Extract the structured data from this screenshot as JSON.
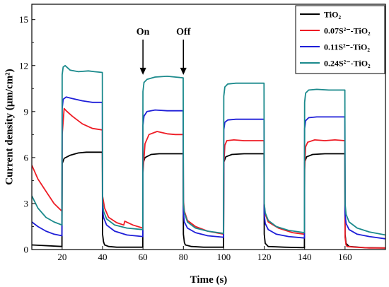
{
  "chart_data": {
    "type": "line",
    "xlabel": "Time (s)",
    "ylabel": "Current density (μm/cm²)",
    "xlim": [
      5,
      180
    ],
    "ylim": [
      0,
      16
    ],
    "xticks": [
      20,
      40,
      60,
      80,
      100,
      120,
      140,
      160
    ],
    "yticks": [
      0,
      3,
      6,
      9,
      12,
      15
    ],
    "grid": false,
    "legend_position": "top-right",
    "annotations": [
      {
        "text": "On",
        "x": 60,
        "y_arrow_tip": 11.3
      },
      {
        "text": "Off",
        "x": 80,
        "y_arrow_tip": 11.3
      }
    ],
    "series": [
      {
        "name": "TiO₂",
        "color": "#000000",
        "x": [
          5,
          19.9,
          20,
          21,
          24,
          28,
          32,
          36,
          39.9,
          40,
          40.5,
          41,
          43,
          47,
          51,
          55,
          59.9,
          60,
          61,
          64,
          68,
          72,
          76,
          79.9,
          80,
          80.5,
          81,
          84,
          90,
          99.9,
          100,
          101,
          104,
          110,
          116,
          119.9,
          120,
          120.5,
          122,
          130,
          139.9,
          140,
          141,
          144,
          150,
          156,
          159.9,
          160,
          160.5,
          162,
          170,
          180
        ],
        "y": [
          0.3,
          0.2,
          5.6,
          5.95,
          6.15,
          6.3,
          6.35,
          6.35,
          6.35,
          1.0,
          0.5,
          0.3,
          0.2,
          0.15,
          0.15,
          0.15,
          0.15,
          5.6,
          6.0,
          6.2,
          6.25,
          6.25,
          6.25,
          6.25,
          1.0,
          0.45,
          0.3,
          0.2,
          0.15,
          0.15,
          5.7,
          6.05,
          6.2,
          6.25,
          6.25,
          6.25,
          1.0,
          0.4,
          0.2,
          0.15,
          0.12,
          5.7,
          6.05,
          6.2,
          6.25,
          6.25,
          6.25,
          1.0,
          0.4,
          0.2,
          0.12,
          0.1
        ]
      },
      {
        "name": "0.07S²⁻-TiO₂",
        "color": "#ee1c25",
        "x": [
          5,
          8,
          12,
          16,
          19.9,
          20,
          21,
          22,
          25,
          30,
          35,
          39.9,
          40,
          41,
          43,
          47,
          50.5,
          51,
          55,
          59.9,
          60,
          61,
          63,
          67,
          72,
          76,
          79.9,
          80,
          80.5,
          82,
          86,
          92,
          99.9,
          100,
          100.5,
          101.5,
          105,
          110,
          115,
          119.9,
          120,
          120.5,
          122,
          127,
          134,
          139.9,
          140,
          140.5,
          141.5,
          145,
          150,
          155,
          159.9,
          160,
          160.5,
          161,
          165,
          172,
          180
        ],
        "y": [
          5.5,
          4.6,
          3.8,
          3.0,
          2.5,
          7.5,
          9.2,
          9.05,
          8.7,
          8.2,
          7.9,
          7.8,
          3.5,
          2.7,
          2.1,
          1.75,
          1.6,
          1.85,
          1.6,
          1.4,
          5.0,
          6.9,
          7.5,
          7.7,
          7.55,
          7.5,
          7.5,
          3.2,
          2.5,
          1.9,
          1.5,
          1.2,
          1.0,
          5.5,
          6.8,
          7.1,
          7.15,
          7.1,
          7.1,
          7.1,
          3.0,
          2.3,
          1.8,
          1.4,
          1.1,
          1.0,
          5.2,
          6.7,
          7.0,
          7.15,
          7.1,
          7.15,
          7.1,
          0.8,
          0.3,
          0.2,
          0.15,
          0.1,
          0.1
        ]
      },
      {
        "name": "0.11S²⁻-TiO₂",
        "color": "#1e1ed8",
        "x": [
          5,
          8,
          12,
          16,
          19.9,
          20,
          20.5,
          22,
          25,
          30,
          35,
          39.9,
          40,
          40.5,
          42,
          46,
          52,
          59.9,
          60,
          60.5,
          62,
          66,
          72,
          79.9,
          80,
          80.5,
          82,
          86,
          92,
          99.9,
          100,
          100.5,
          102,
          106,
          112,
          119.9,
          120,
          120.5,
          122,
          126,
          132,
          139.9,
          140,
          140.5,
          142,
          146,
          152,
          159.9,
          160,
          160.5,
          162,
          166,
          172,
          180
        ],
        "y": [
          1.8,
          1.5,
          1.2,
          1.0,
          0.9,
          9.2,
          9.8,
          9.95,
          9.85,
          9.7,
          9.6,
          9.6,
          2.6,
          2.1,
          1.6,
          1.2,
          0.95,
          0.85,
          8.1,
          8.7,
          9.0,
          9.1,
          9.05,
          9.05,
          2.4,
          1.8,
          1.4,
          1.1,
          0.9,
          0.8,
          7.8,
          8.3,
          8.45,
          8.5,
          8.5,
          8.5,
          2.3,
          1.7,
          1.3,
          1.0,
          0.85,
          0.75,
          7.9,
          8.4,
          8.6,
          8.65,
          8.65,
          8.65,
          2.3,
          1.7,
          1.3,
          1.0,
          0.85,
          0.7
        ]
      },
      {
        "name": "0.24S²⁻-TiO₂",
        "color": "#1b8a8c",
        "x": [
          5,
          8,
          12,
          16,
          19.9,
          20,
          20.5,
          21.5,
          24,
          28,
          33,
          36,
          39.9,
          40,
          40.5,
          42,
          46,
          52,
          59.9,
          60,
          60.5,
          62,
          66,
          72,
          76,
          79.9,
          80,
          80.5,
          82,
          86,
          92,
          99.9,
          100,
          100.5,
          102,
          106,
          112,
          119.9,
          120,
          120.5,
          122,
          126,
          132,
          139.9,
          140,
          140.5,
          142,
          146,
          152,
          159.9,
          160,
          160.5,
          162,
          166,
          172,
          180
        ],
        "y": [
          3.5,
          2.7,
          2.1,
          1.8,
          1.6,
          11.4,
          11.9,
          12.0,
          11.7,
          11.6,
          11.65,
          11.6,
          11.55,
          3.1,
          2.5,
          2.0,
          1.6,
          1.4,
          1.3,
          10.3,
          10.9,
          11.1,
          11.25,
          11.3,
          11.25,
          11.2,
          3.0,
          2.4,
          1.8,
          1.4,
          1.2,
          1.05,
          10.0,
          10.6,
          10.8,
          10.85,
          10.85,
          10.85,
          3.0,
          2.4,
          1.9,
          1.5,
          1.25,
          1.1,
          9.6,
          10.2,
          10.4,
          10.45,
          10.4,
          10.4,
          3.0,
          2.3,
          1.8,
          1.4,
          1.15,
          0.95
        ]
      }
    ]
  }
}
